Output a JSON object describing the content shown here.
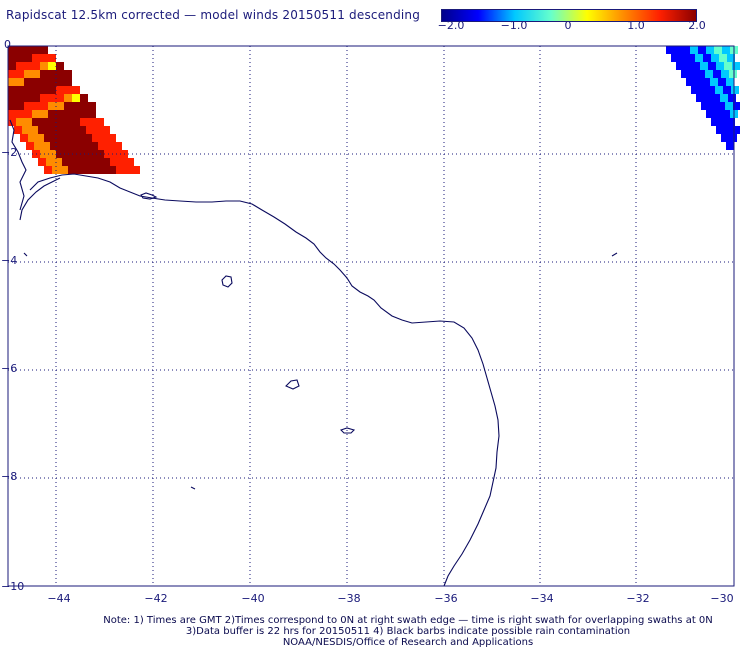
{
  "title": "Rapidscat 12.5km corrected — model winds 20150511 descending",
  "colorbar": {
    "ticks": [
      "−2.0",
      "−1.0",
      "0",
      "1.0",
      "2.0"
    ],
    "stops": [
      "#00008b",
      "#0000ff",
      "#00c8ff",
      "#66ffcc",
      "#ffff00",
      "#ff8c00",
      "#ff2000",
      "#8b0000"
    ]
  },
  "axes": {
    "x_ticks": [
      "−44",
      "−42",
      "−40",
      "−38",
      "−36",
      "−34",
      "−32",
      "−30"
    ],
    "y_ticks": [
      "0",
      "−2",
      "−4",
      "−6",
      "−8",
      "−10"
    ]
  },
  "footer": {
    "line1": "Note: 1) Times are GMT 2)Times correspond to 0N at right swath edge — time is right swath for overlapping swaths at 0N",
    "line2": "3)Data buffer is 22 hrs for 20150511 4) Black barbs indicate possible rain contamination",
    "line3": "NOAA/NESDIS/Office of Research and Applications"
  },
  "colors": {
    "coast": "#0a0a5e",
    "grid": "#1a1a7a",
    "frame": "#1a1a7a"
  }
}
